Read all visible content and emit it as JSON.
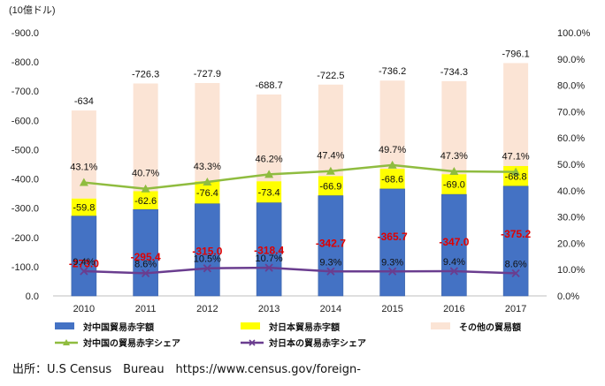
{
  "chart_data": {
    "type": "bar",
    "stacked": true,
    "categories": [
      "2010",
      "2011",
      "2012",
      "2013",
      "2014",
      "2015",
      "2016",
      "2017"
    ],
    "y_unit_label": "(10億ドル)",
    "ylim_left": [
      0,
      -900
    ],
    "yticks_left": [
      "0.0",
      "-100.0",
      "-200.0",
      "-300.0",
      "-400.0",
      "-500.0",
      "-600.0",
      "-700.0",
      "-800.0",
      "-900.0"
    ],
    "ylim_right": [
      0,
      100
    ],
    "yticks_right": [
      "0.0%",
      "10.0%",
      "20.0%",
      "30.0%",
      "40.0%",
      "50.0%",
      "60.0%",
      "70.0%",
      "80.0%",
      "90.0%",
      "100.0%"
    ],
    "series": [
      {
        "name": "対中国貿易赤字額",
        "kind": "bar",
        "axis": "left",
        "color": "#4472c4",
        "values": [
          -273.0,
          -295.4,
          -315.0,
          -318.4,
          -342.7,
          -365.7,
          -347.0,
          -375.2
        ],
        "labels": [
          "-273.0",
          "-295.4",
          "-315.0",
          "-318.4",
          "-342.7",
          "-365.7",
          "-347.0",
          "-375.2"
        ]
      },
      {
        "name": "対日本貿易赤字額",
        "kind": "bar",
        "axis": "left",
        "color": "#ffff00",
        "values": [
          -59.8,
          -62.6,
          -76.4,
          -73.4,
          -66.9,
          -68.6,
          -69.0,
          -68.8
        ],
        "labels": [
          "-59.8",
          "-62.6",
          "-76.4",
          "-73.4",
          "-66.9",
          "-68.6",
          "-69.0",
          "-68.8"
        ]
      },
      {
        "name": "その他の貿易額",
        "kind": "bar",
        "axis": "left",
        "color": "#fbe4d5",
        "totals": [
          -634,
          -726.3,
          -727.9,
          -688.7,
          -722.5,
          -736.2,
          -734.3,
          -796.1
        ],
        "labels": [
          "-634",
          "-726.3",
          "-727.9",
          "-688.7",
          "-722.5",
          "-736.2",
          "-734.3",
          "-796.1"
        ]
      },
      {
        "name": "対中国の貿易赤字シェア",
        "kind": "line",
        "axis": "right",
        "color": "#8fbc3f",
        "values": [
          43.1,
          40.7,
          43.3,
          46.2,
          47.4,
          49.7,
          47.3,
          47.1
        ],
        "labels": [
          "43.1%",
          "40.7%",
          "43.3%",
          "46.2%",
          "47.4%",
          "49.7%",
          "47.3%",
          "47.1%"
        ]
      },
      {
        "name": "対日本の貿易赤字シェア",
        "kind": "line",
        "axis": "right",
        "color": "#6a3d8f",
        "values": [
          9.4,
          8.6,
          10.5,
          10.7,
          9.3,
          9.3,
          9.4,
          8.6
        ],
        "labels": [
          "9.4%",
          "8.6%",
          "10.5%",
          "10.7%",
          "9.3%",
          "9.3%",
          "9.4%",
          "8.6%"
        ]
      }
    ],
    "legend_position": "bottom",
    "grid": false
  },
  "source_text": "出所：U.S Census　Bureau　https://www.census.gov/foreign-"
}
